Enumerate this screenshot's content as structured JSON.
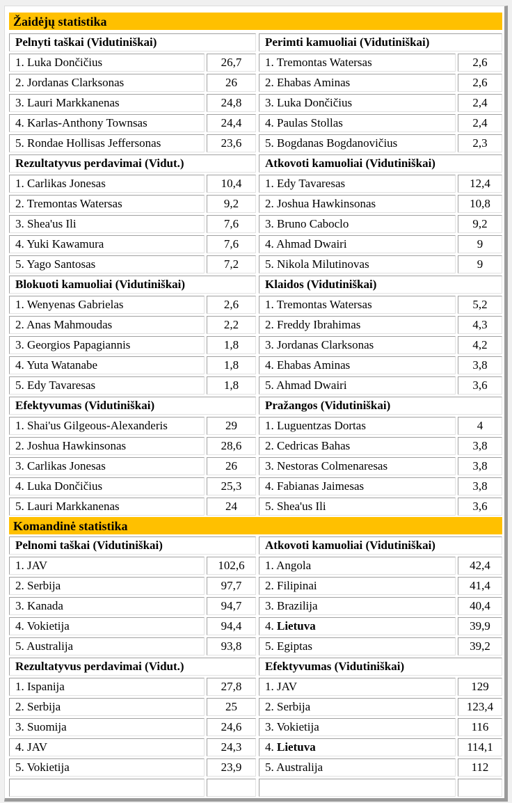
{
  "sections": [
    {
      "title": "Žaidėjų statistika",
      "groups": [
        {
          "title": "Pelnyti taškai (Vidutiniškai)",
          "rows": [
            {
              "rank": "1.",
              "name": "Luka Dončičius",
              "value": "26,7"
            },
            {
              "rank": "2.",
              "name": "Jordanas Clarksonas",
              "value": "26"
            },
            {
              "rank": "3.",
              "name": "Lauri Markkanenas",
              "value": "24,8"
            },
            {
              "rank": "4.",
              "name": "Karlas-Anthony Townsas",
              "value": "24,4"
            },
            {
              "rank": "5.",
              "name": "Rondae Hollisas Jeffersonas",
              "value": "23,6"
            }
          ]
        },
        {
          "title": "Perimti kamuoliai (Vidutiniškai)",
          "rows": [
            {
              "rank": "1.",
              "name": "Tremontas Watersas",
              "value": "2,6"
            },
            {
              "rank": "2.",
              "name": "Ehabas Aminas",
              "value": "2,6"
            },
            {
              "rank": "3.",
              "name": "Luka Dončičius",
              "value": "2,4"
            },
            {
              "rank": "4.",
              "name": "Paulas Stollas",
              "value": "2,4"
            },
            {
              "rank": "5.",
              "name": "Bogdanas Bogdanovičius",
              "value": "2,3"
            }
          ]
        },
        {
          "title": "Rezultatyvus perdavimai (Vidut.)",
          "rows": [
            {
              "rank": "1.",
              "name": "Carlikas Jonesas",
              "value": "10,4"
            },
            {
              "rank": "2.",
              "name": "Tremontas Watersas",
              "value": "9,2"
            },
            {
              "rank": "3.",
              "name": "Shea'us Ili",
              "value": "7,6"
            },
            {
              "rank": "4.",
              "name": "Yuki Kawamura",
              "value": "7,6"
            },
            {
              "rank": "5.",
              "name": "Yago Santosas",
              "value": "7,2"
            }
          ]
        },
        {
          "title": "Atkovoti kamuoliai (Vidutiniškai)",
          "rows": [
            {
              "rank": "1.",
              "name": "Edy Tavaresas",
              "value": "12,4"
            },
            {
              "rank": "2.",
              "name": "Joshua Hawkinsonas",
              "value": "10,8"
            },
            {
              "rank": "3.",
              "name": "Bruno Caboclo",
              "value": "9,2"
            },
            {
              "rank": "4.",
              "name": "Ahmad Dwairi",
              "value": "9"
            },
            {
              "rank": "5.",
              "name": "Nikola Milutinovas",
              "value": "9"
            }
          ]
        },
        {
          "title": "Blokuoti kamuoliai (Vidutiniškai)",
          "rows": [
            {
              "rank": "1.",
              "name": "Wenyenas Gabrielas",
              "value": "2,6"
            },
            {
              "rank": "2.",
              "name": "Anas Mahmoudas",
              "value": "2,2"
            },
            {
              "rank": "3.",
              "name": "Georgios Papagiannis",
              "value": "1,8"
            },
            {
              "rank": "4.",
              "name": "Yuta Watanabe",
              "value": "1,8"
            },
            {
              "rank": "5.",
              "name": "Edy Tavaresas",
              "value": "1,8"
            }
          ]
        },
        {
          "title": "Klaidos (Vidutiniškai)",
          "rows": [
            {
              "rank": "1.",
              "name": "Tremontas Watersas",
              "value": "5,2"
            },
            {
              "rank": "2.",
              "name": "Freddy Ibrahimas",
              "value": "4,3"
            },
            {
              "rank": "3.",
              "name": "Jordanas Clarksonas",
              "value": "4,2"
            },
            {
              "rank": "4.",
              "name": "Ehabas Aminas",
              "value": "3,8"
            },
            {
              "rank": "5.",
              "name": "Ahmad Dwairi",
              "value": "3,6"
            }
          ]
        },
        {
          "title": "Efektyvumas (Vidutiniškai)",
          "rows": [
            {
              "rank": "1.",
              "name": "Shai'us Gilgeous-Alexanderis",
              "value": "29"
            },
            {
              "rank": "2.",
              "name": "Joshua Hawkinsonas",
              "value": "28,6"
            },
            {
              "rank": "3.",
              "name": "Carlikas Jonesas",
              "value": "26"
            },
            {
              "rank": "4.",
              "name": "Luka Dončičius",
              "value": "25,3"
            },
            {
              "rank": "5.",
              "name": "Lauri Markkanenas",
              "value": "24"
            }
          ]
        },
        {
          "title": "Pražangos (Vidutiniškai)",
          "rows": [
            {
              "rank": "1.",
              "name": "Luguentzas Dortas",
              "value": "4"
            },
            {
              "rank": "2.",
              "name": "Cedricas Bahas",
              "value": "3,8"
            },
            {
              "rank": "3.",
              "name": "Nestoras Colmenaresas",
              "value": "3,8"
            },
            {
              "rank": "4.",
              "name": "Fabianas Jaimesas",
              "value": "3,8"
            },
            {
              "rank": "5.",
              "name": "Shea'us Ili",
              "value": "3,6"
            }
          ]
        }
      ]
    },
    {
      "title": "Komandinė statistika",
      "groups": [
        {
          "title": "Pelnomi taškai (Vidutiniškai)",
          "rows": [
            {
              "rank": "1.",
              "name": "JAV",
              "value": "102,6"
            },
            {
              "rank": "2.",
              "name": "Serbija",
              "value": "97,7"
            },
            {
              "rank": "3.",
              "name": "Kanada",
              "value": "94,7"
            },
            {
              "rank": "4.",
              "name": "Vokietija",
              "value": "94,4"
            },
            {
              "rank": "5.",
              "name": "Australija",
              "value": "93,8"
            }
          ]
        },
        {
          "title": "Atkovoti kamuoliai (Vidutiniškai)",
          "rows": [
            {
              "rank": "1.",
              "name": "Angola",
              "value": "42,4"
            },
            {
              "rank": "2.",
              "name": "Filipinai",
              "value": "41,4"
            },
            {
              "rank": "3.",
              "name": "Brazilija",
              "value": "40,4"
            },
            {
              "rank": "4.",
              "name": "Lietuva",
              "value": "39,9",
              "bold": true
            },
            {
              "rank": "5.",
              "name": "Egiptas",
              "value": "39,2"
            }
          ]
        },
        {
          "title": "Rezultatyvus perdavimai (Vidut.)",
          "rows": [
            {
              "rank": "1.",
              "name": "Ispanija",
              "value": "27,8"
            },
            {
              "rank": "2.",
              "name": "Serbija",
              "value": "25"
            },
            {
              "rank": "3.",
              "name": "Suomija",
              "value": "24,6"
            },
            {
              "rank": "4.",
              "name": "JAV",
              "value": "24,3"
            },
            {
              "rank": "5.",
              "name": "Vokietija",
              "value": "23,9"
            }
          ]
        },
        {
          "title": "Efektyvumas (Vidutiniškai)",
          "rows": [
            {
              "rank": "1.",
              "name": "JAV",
              "value": "129"
            },
            {
              "rank": "2.",
              "name": "Serbija",
              "value": "123,4"
            },
            {
              "rank": "3.",
              "name": "Vokietija",
              "value": "116"
            },
            {
              "rank": "4.",
              "name": "Lietuva",
              "value": "114,1",
              "bold": true
            },
            {
              "rank": "5.",
              "name": "Australija",
              "value": "112"
            }
          ]
        }
      ],
      "trailing_empty_row": true
    }
  ]
}
